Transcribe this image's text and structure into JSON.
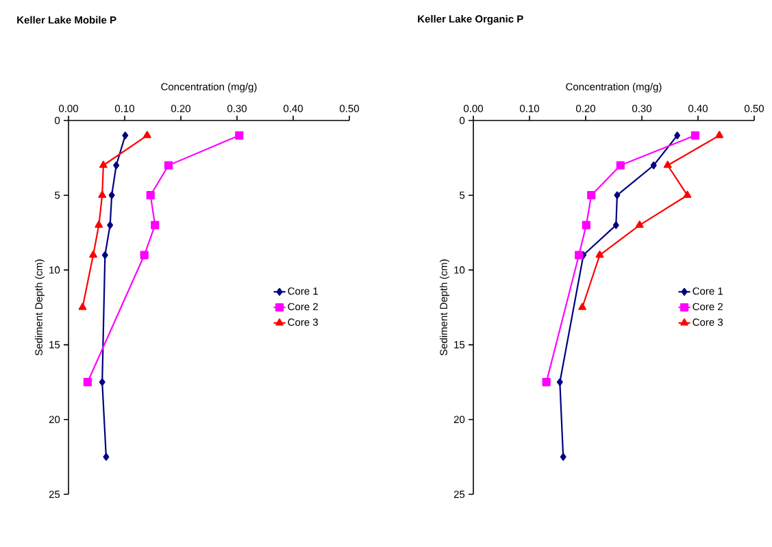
{
  "chart_data": [
    {
      "type": "line",
      "title": "Keller Lake Mobile P",
      "xlabel": "Concentration (mg/g)",
      "ylabel": "Sediment Depth (cm)",
      "xlim": [
        0,
        0.5
      ],
      "xticks": [
        {
          "value": 0,
          "label": "0.00"
        },
        {
          "value": 0.1,
          "label": "0.10"
        },
        {
          "value": 0.2,
          "label": "0.20"
        },
        {
          "value": 0.3,
          "label": "0.30"
        },
        {
          "value": 0.4,
          "label": "0.40"
        },
        {
          "value": 0.5,
          "label": "0.50"
        }
      ],
      "ylim": [
        25,
        0
      ],
      "yticks": [
        0,
        5,
        10,
        15,
        20,
        25
      ],
      "legend": "right",
      "series": [
        {
          "name": "Core 1",
          "color": "#000080",
          "marker": "diamond",
          "x": [
            0.101,
            0.085,
            0.077,
            0.074,
            0.065,
            0.06,
            0.067
          ],
          "values": [
            1,
            3,
            5,
            7,
            9,
            17.5,
            22.5
          ]
        },
        {
          "name": "Core 2",
          "color": "#ff00ff",
          "marker": "square",
          "x": [
            0.304,
            0.178,
            0.146,
            0.154,
            0.135,
            0.034
          ],
          "values": [
            1,
            3,
            5,
            7,
            9,
            17.5
          ]
        },
        {
          "name": "Core 3",
          "color": "#ff0000",
          "marker": "triangle",
          "x": [
            0.14,
            0.062,
            0.06,
            0.054,
            0.044,
            0.025
          ],
          "values": [
            1,
            3,
            5,
            7,
            9,
            12.5
          ]
        }
      ]
    },
    {
      "type": "line",
      "title": "Keller Lake Organic P",
      "xlabel": "Concentration (mg/g)",
      "ylabel": "Sediment Depth (cm)",
      "xlim": [
        0,
        0.5
      ],
      "xticks": [
        {
          "value": 0,
          "label": "0.00"
        },
        {
          "value": 0.1,
          "label": "0.10"
        },
        {
          "value": 0.2,
          "label": "0.20"
        },
        {
          "value": 0.3,
          "label": "0.30"
        },
        {
          "value": 0.4,
          "label": "0.40"
        },
        {
          "value": 0.5,
          "label": "0.50"
        }
      ],
      "ylim": [
        25,
        0
      ],
      "yticks": [
        0,
        5,
        10,
        15,
        20,
        25
      ],
      "legend": "right",
      "series": [
        {
          "name": "Core 1",
          "color": "#000080",
          "marker": "diamond",
          "x": [
            0.363,
            0.321,
            0.256,
            0.254,
            0.196,
            0.154,
            0.16
          ],
          "values": [
            1,
            3,
            5,
            7,
            9,
            17.5,
            22.5
          ]
        },
        {
          "name": "Core 2",
          "color": "#ff00ff",
          "marker": "square",
          "x": [
            0.395,
            0.262,
            0.21,
            0.201,
            0.188,
            0.13
          ],
          "values": [
            1,
            3,
            5,
            7,
            9,
            17.5
          ]
        },
        {
          "name": "Core 3",
          "color": "#ff0000",
          "marker": "triangle",
          "x": [
            0.438,
            0.346,
            0.381,
            0.296,
            0.225,
            0.194
          ],
          "values": [
            1,
            3,
            5,
            7,
            9,
            12.5
          ]
        }
      ]
    }
  ]
}
